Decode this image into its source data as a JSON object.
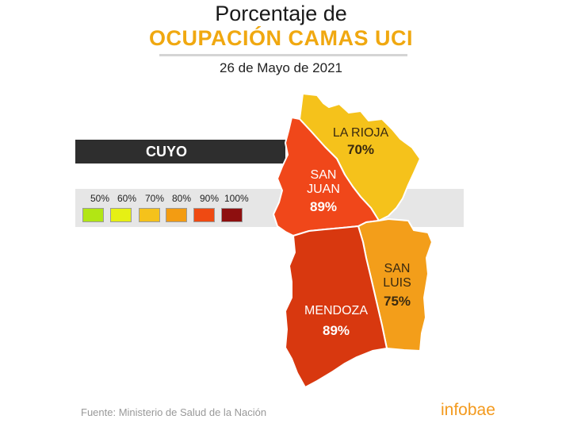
{
  "header": {
    "title_line1": "Porcentaje de",
    "title_line2": "OCUPACIÓN CAMAS UCI",
    "date": "26 de Mayo de 2021"
  },
  "region": {
    "label": "CUYO"
  },
  "legend": {
    "items": [
      {
        "label": "50%",
        "color": "#b2e614"
      },
      {
        "label": "60%",
        "color": "#e6f014"
      },
      {
        "label": "70%",
        "color": "#f5c21b"
      },
      {
        "label": "80%",
        "color": "#f39c12"
      },
      {
        "label": "90%",
        "color": "#ef4a12"
      },
      {
        "label": "100%",
        "color": "#8e0f0f"
      }
    ]
  },
  "provinces": {
    "la_rioja": {
      "name": "LA RIOJA",
      "value": "70%",
      "color": "#f5c21b"
    },
    "san_juan": {
      "name_line1": "SAN",
      "name_line2": "JUAN",
      "value": "89%",
      "color": "#f0471a"
    },
    "san_luis": {
      "name_line1": "SAN",
      "name_line2": "LUIS",
      "value": "75%",
      "color": "#f39e1a"
    },
    "mendoza": {
      "name": "MENDOZA",
      "value": "89%",
      "color": "#d8380f"
    }
  },
  "footer": {
    "source": "Fuente: Ministerio de Salud de la Nación",
    "logo": "infobae"
  }
}
